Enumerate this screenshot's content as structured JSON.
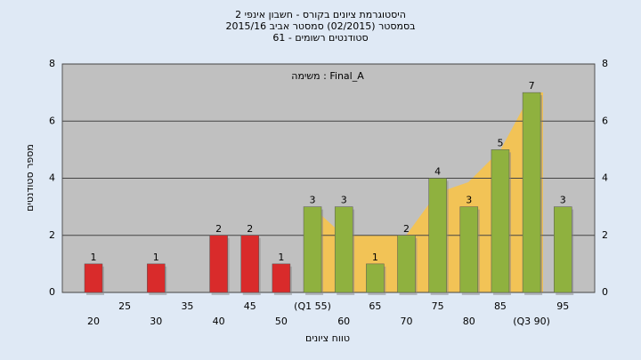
{
  "chart_data": {
    "type": "bar",
    "title": [
      "היסטוגרמת ציונים בקורס - חשבון אינפי 2",
      "בסמסטר (02/2015)  סמסטר אביב 2015/16",
      "סטודנטים רשומים - 61"
    ],
    "annotation": "משימה : Final_A",
    "x_label": "טווח ציונים",
    "y_label": "מספר סטודנטים",
    "categories": [
      "20",
      "25",
      "30",
      "35",
      "40",
      "45",
      "50",
      "(Q1 55)",
      "60",
      "65",
      "70",
      "75",
      "80",
      "85",
      "(Q3 90)",
      "95"
    ],
    "values": [
      1,
      0,
      1,
      0,
      2,
      2,
      1,
      3,
      3,
      1,
      2,
      4,
      3,
      5,
      7,
      3
    ],
    "colors": [
      "#d92b2b",
      "#d92b2b",
      "#d92b2b",
      "#d92b2b",
      "#d92b2b",
      "#d92b2b",
      "#d92b2b",
      "#8fb13f",
      "#8fb13f",
      "#8fb13f",
      "#8fb13f",
      "#8fb13f",
      "#8fb13f",
      "#8fb13f",
      "#8fb13f",
      "#8fb13f"
    ],
    "ylim": [
      0,
      8
    ],
    "yticks": [
      0,
      2,
      4,
      6,
      8
    ],
    "grid": true
  }
}
